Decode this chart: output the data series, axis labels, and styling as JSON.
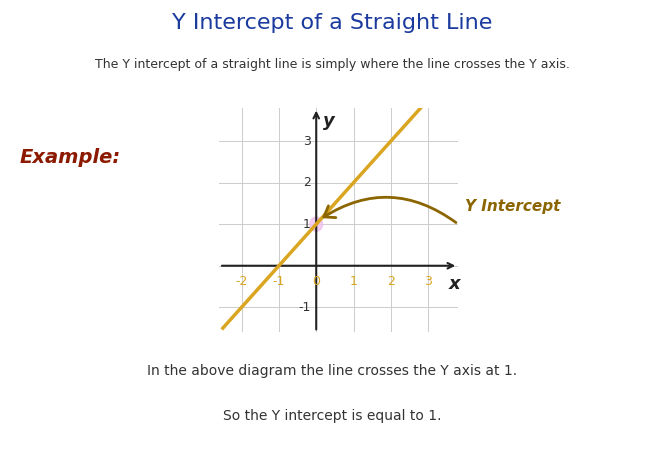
{
  "title": "Y Intercept of a Straight Line",
  "title_color": "#1a3a9e",
  "subtitle": "The Y intercept of a straight line is simply where the line crosses the Y axis.",
  "subtitle_color": "#333333",
  "example_label": "Example:",
  "example_color": "#8B1A00",
  "line_color": "#DAA520",
  "line_slope": 1,
  "line_intercept": 1,
  "x_range": [
    -2.6,
    3.8
  ],
  "y_range": [
    -1.6,
    3.8
  ],
  "x_ticks": [
    -2,
    -1,
    0,
    1,
    2,
    3
  ],
  "y_ticks": [
    -1,
    1,
    2,
    3
  ],
  "tick_color_x": "#DAA520",
  "tick_color_y": "#333333",
  "axis_color": "#222222",
  "grid_color": "#cccccc",
  "intercept_point": [
    0,
    1
  ],
  "intercept_highlight_color": "#f0c0f0",
  "annotation_text": "Y Intercept",
  "annotation_color": "#8B6500",
  "bottom_text1": "In the above diagram the line crosses the Y axis at 1.",
  "bottom_text2": "So the Y intercept is equal to 1.",
  "text_color": "#333333",
  "bg_color": "#ffffff",
  "fig_width": 6.64,
  "fig_height": 4.49
}
